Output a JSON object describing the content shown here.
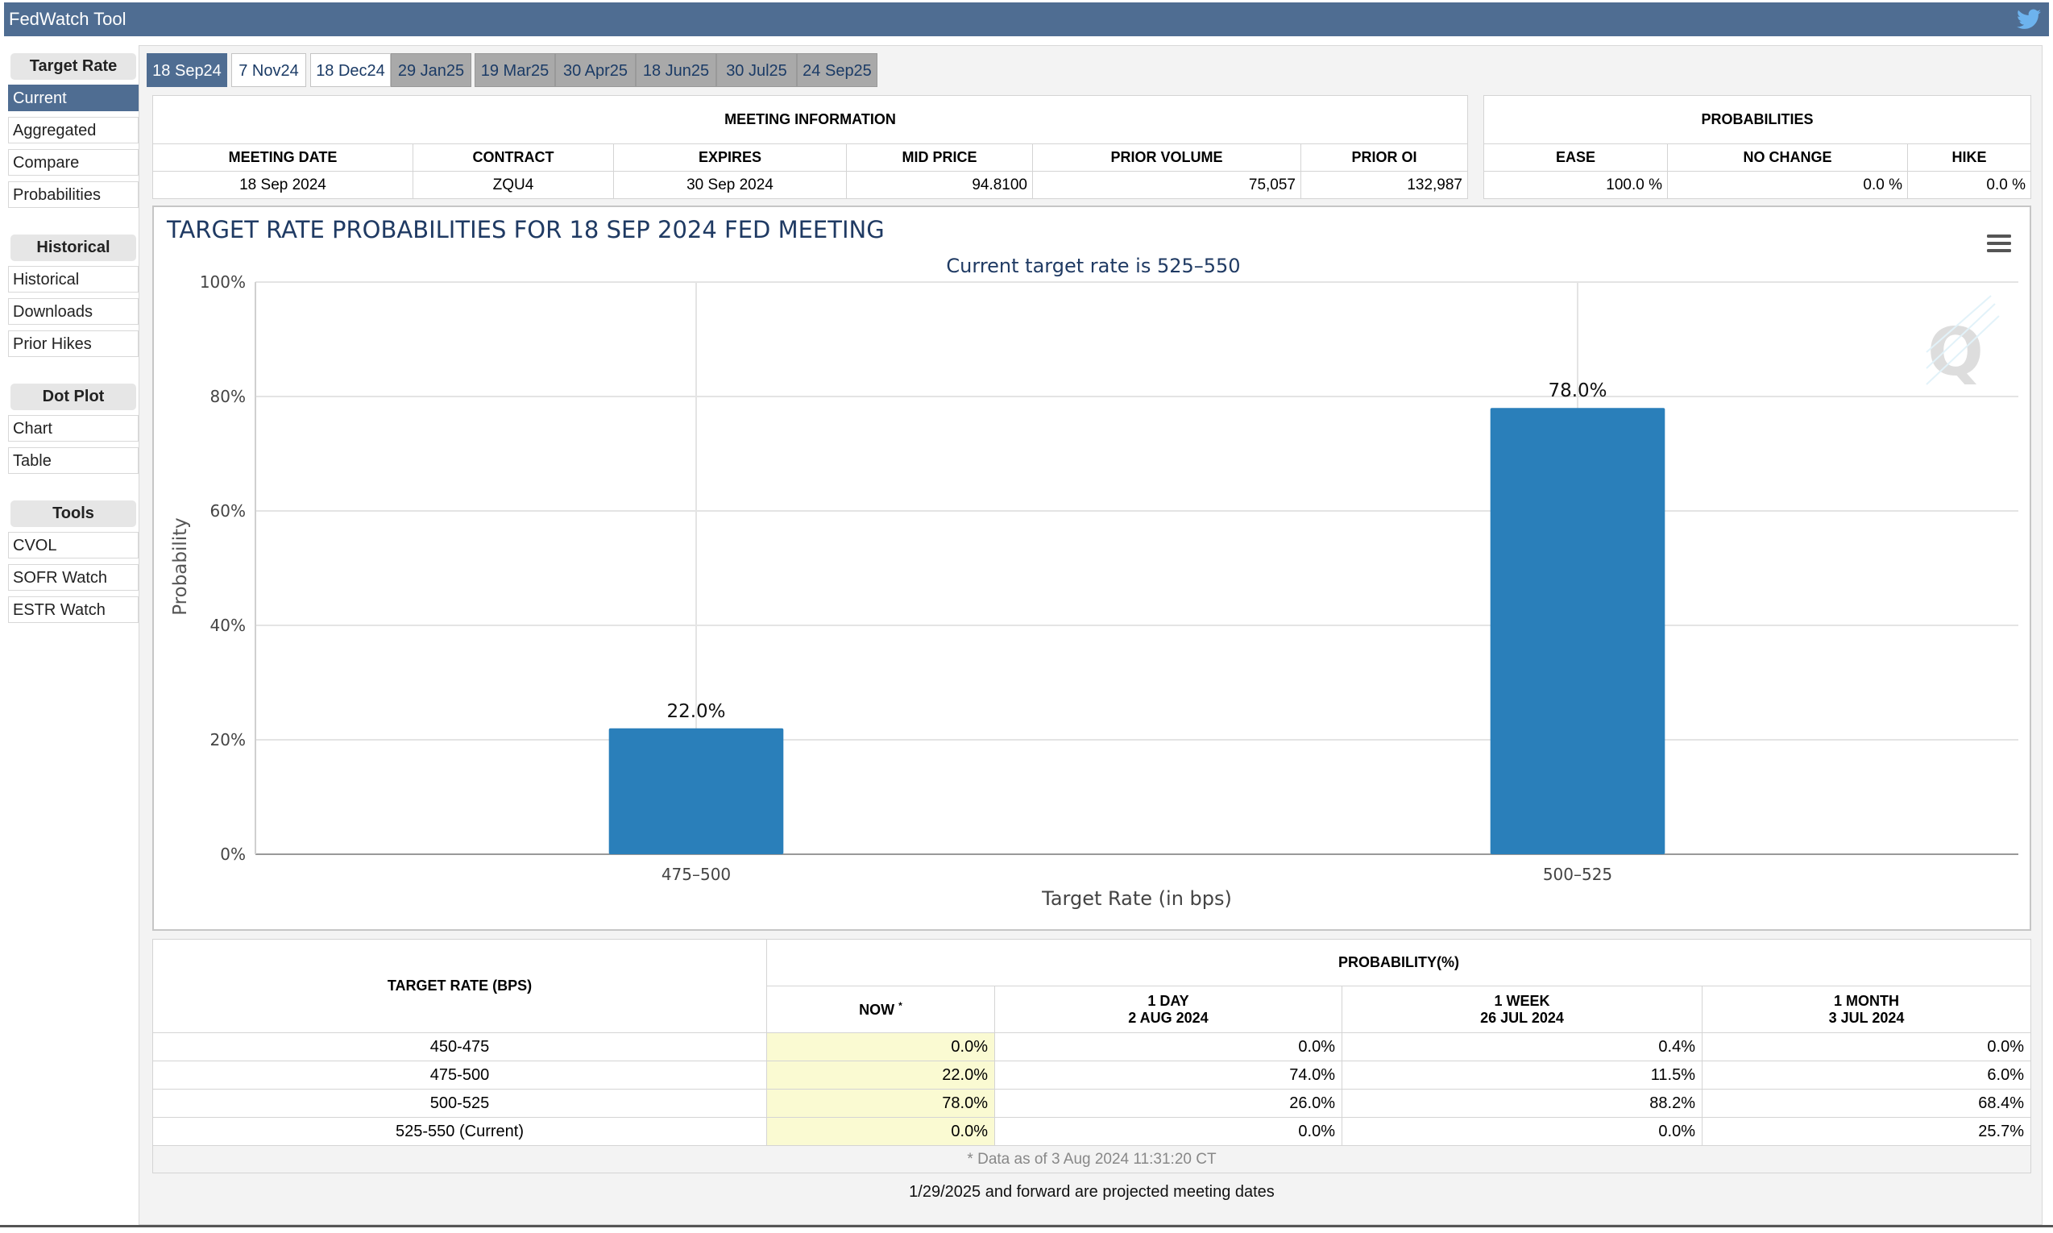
{
  "app": {
    "title": "FedWatch Tool",
    "social_icon": "twitter-icon"
  },
  "sidebar": {
    "sections": [
      {
        "heading": "Target Rate",
        "items": [
          "Current",
          "Aggregated",
          "Compare",
          "Probabilities"
        ]
      },
      {
        "heading": "Historical",
        "items": [
          "Historical",
          "Downloads",
          "Prior Hikes"
        ]
      },
      {
        "heading": "Dot Plot",
        "items": [
          "Chart",
          "Table"
        ]
      },
      {
        "heading": "Tools",
        "items": [
          "CVOL",
          "SOFR Watch",
          "ESTR Watch"
        ]
      }
    ],
    "active_item": "Current"
  },
  "tabs": [
    "18 Sep24",
    "7 Nov24",
    "18 Dec24",
    "29 Jan25",
    "19 Mar25",
    "30 Apr25",
    "18 Jun25",
    "30 Jul25",
    "24 Sep25"
  ],
  "meeting_info": {
    "heading": "MEETING INFORMATION",
    "columns": [
      "MEETING DATE",
      "CONTRACT",
      "EXPIRES",
      "MID PRICE",
      "PRIOR VOLUME",
      "PRIOR OI"
    ],
    "values": [
      "18 Sep 2024",
      "ZQU4",
      "30 Sep 2024",
      "94.8100",
      "75,057",
      "132,987"
    ]
  },
  "probabilities": {
    "heading": "PROBABILITIES",
    "columns": [
      "EASE",
      "NO CHANGE",
      "HIKE"
    ],
    "values": [
      "100.0 %",
      "0.0 %",
      "0.0 %"
    ]
  },
  "chart_data": {
    "type": "bar",
    "title": "TARGET RATE PROBABILITIES FOR 18 SEP 2024 FED MEETING",
    "subtitle": "Current target rate is 525–550",
    "categories": [
      "475–500",
      "500–525"
    ],
    "values": [
      22.0,
      78.0
    ],
    "data_labels": [
      "22.0%",
      "78.0%"
    ],
    "xlabel": "Target Rate (in bps)",
    "ylabel": "Probability",
    "ylim": [
      0,
      100
    ],
    "yticks": [
      "0%",
      "20%",
      "40%",
      "60%",
      "80%",
      "100%"
    ],
    "grid": true,
    "bar_color": "#2a7fba",
    "watermark": "Q"
  },
  "prob_table": {
    "col_target": "TARGET RATE (BPS)",
    "group_heading": "PROBABILITY(%)",
    "now_label": "NOW",
    "now_mark": "*",
    "day_label": "1 DAY",
    "day_date": "2 AUG 2024",
    "week_label": "1 WEEK",
    "week_date": "26 JUL 2024",
    "month_label": "1 MONTH",
    "month_date": "3 JUL 2024",
    "rows": [
      {
        "rate": "450-475",
        "now": "0.0%",
        "day": "0.0%",
        "week": "0.4%",
        "month": "0.0%"
      },
      {
        "rate": "475-500",
        "now": "22.0%",
        "day": "74.0%",
        "week": "11.5%",
        "month": "6.0%"
      },
      {
        "rate": "500-525",
        "now": "78.0%",
        "day": "26.0%",
        "week": "88.2%",
        "month": "68.4%"
      },
      {
        "rate": "525-550 (Current)",
        "now": "0.0%",
        "day": "0.0%",
        "week": "0.0%",
        "month": "25.7%"
      }
    ],
    "footnote": "* Data as of 3 Aug 2024 11:31:20 CT"
  },
  "bottom_note": "1/29/2025 and forward are projected meeting dates"
}
